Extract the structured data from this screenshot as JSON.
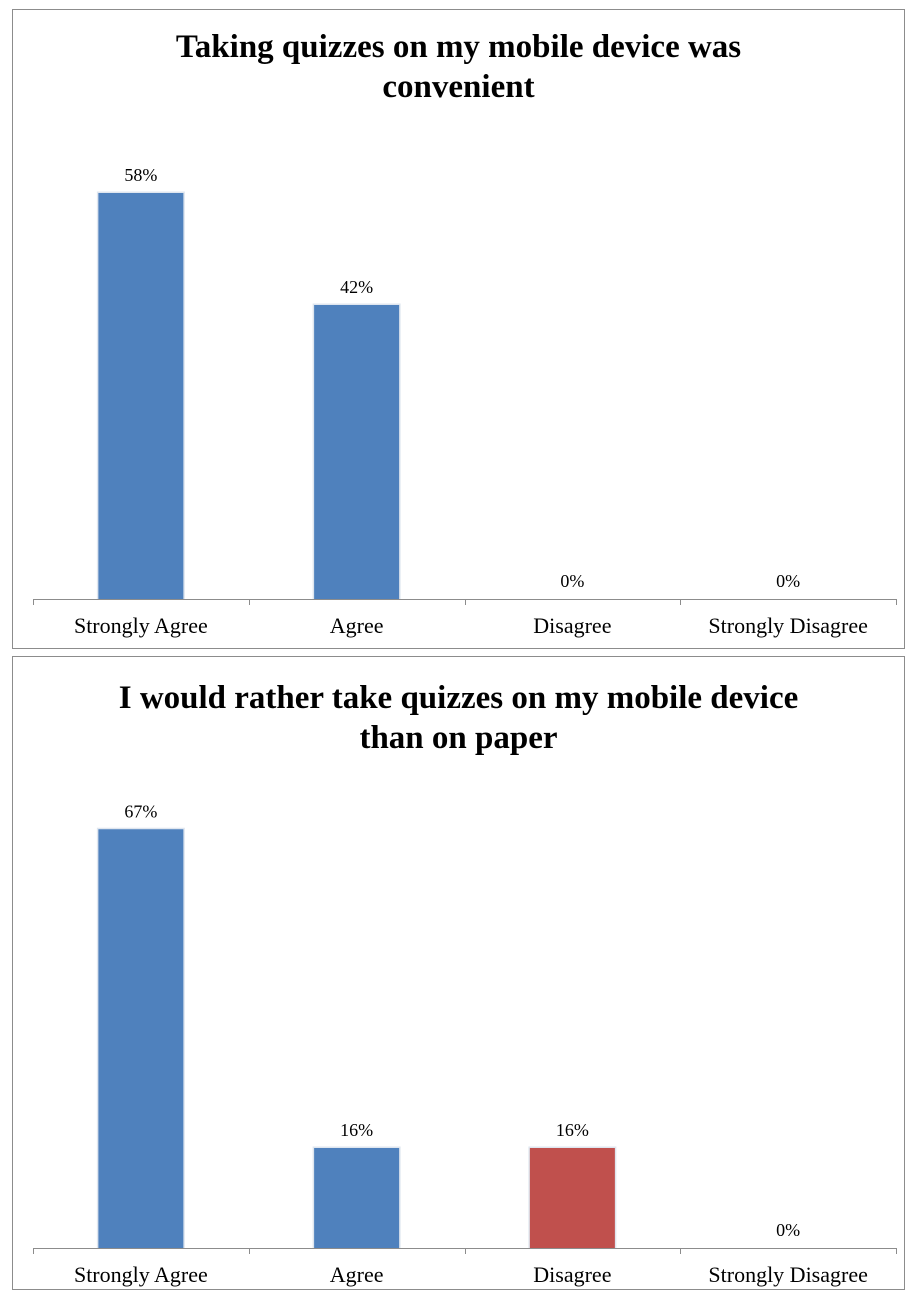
{
  "chart_data": [
    {
      "type": "bar",
      "title": "Taking quizzes on my mobile device was convenient",
      "xlabel": "",
      "ylabel": "",
      "categories": [
        "Strongly Agree",
        "Agree",
        "Disagree",
        "Strongly Disagree"
      ],
      "values": [
        58,
        42,
        0,
        0
      ],
      "data_labels": [
        "58%",
        "42%",
        "0%",
        "0%"
      ],
      "unit": "%",
      "ylim": [
        0,
        70
      ],
      "bar_colors": [
        "#4f81bd",
        "#4f81bd",
        "#4f81bd",
        "#4f81bd"
      ],
      "grid": false,
      "legend": "none"
    },
    {
      "type": "bar",
      "title": "I would rather take quizzes on my mobile device than on paper",
      "xlabel": "",
      "ylabel": "",
      "categories": [
        "Strongly Agree",
        "Agree",
        "Disagree",
        "Strongly Disagree"
      ],
      "values": [
        67,
        16,
        16,
        0
      ],
      "data_labels": [
        "67%",
        "16%",
        "16%",
        "0%"
      ],
      "unit": "%",
      "ylim": [
        0,
        72
      ],
      "bar_colors": [
        "#4f81bd",
        "#4f81bd",
        "#c0504d",
        "#4f81bd"
      ],
      "grid": false,
      "legend": "none"
    }
  ]
}
